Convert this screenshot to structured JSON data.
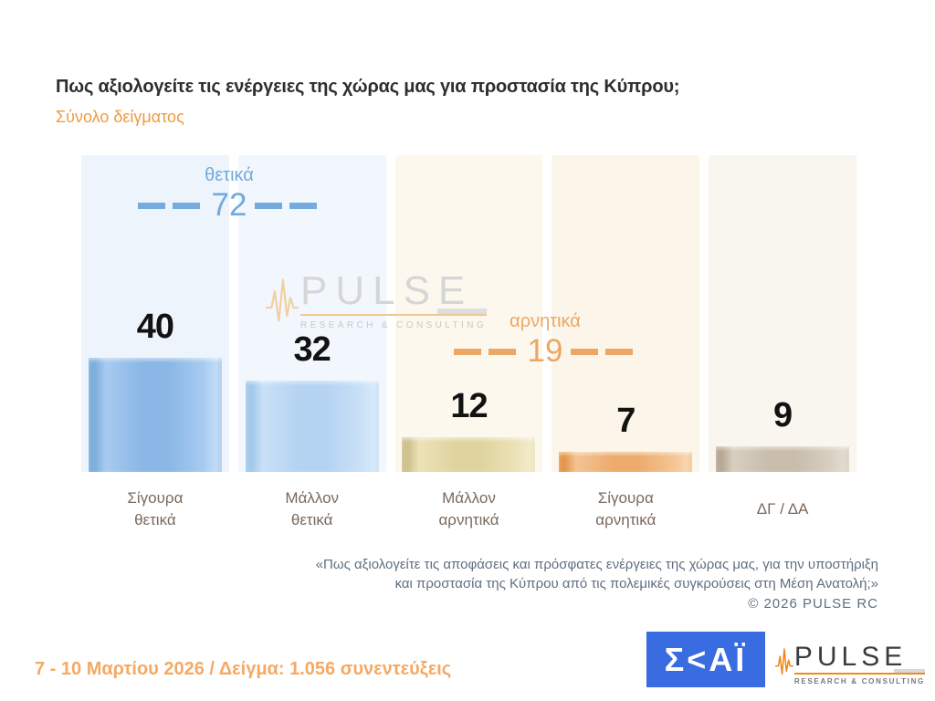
{
  "header": {
    "title": "Πως αξιολογείτε τις ενέργειες της χώρας μας για προστασία της Κύπρου;",
    "subtitle": "Σύνολο δείγματος"
  },
  "chart_data": {
    "type": "bar",
    "title": "Πως αξιολογείτε τις ενέργειες της χώρας μας για προστασία της Κύπρου;",
    "categories": [
      "Σίγουρα θετικά",
      "Μάλλον θετικά",
      "Μάλλον αρνητικά",
      "Σίγουρα αρνητικά",
      "ΔΓ / ΔΑ"
    ],
    "category_lines": [
      [
        "Σίγουρα",
        "θετικά"
      ],
      [
        "Μάλλον",
        "θετικά"
      ],
      [
        "Μάλλον",
        "αρνητικά"
      ],
      [
        "Σίγουρα",
        "αρνητικά"
      ],
      [
        "ΔΓ / ΔΑ"
      ]
    ],
    "values": [
      40,
      32,
      12,
      7,
      9
    ],
    "xlabel": "",
    "ylabel": "",
    "ylim": [
      0,
      111
    ],
    "grid": false,
    "legend_position": "none",
    "value_labels_shown": true,
    "groups": [
      {
        "label": "θετικά",
        "value": 72,
        "color": "#71aade"
      },
      {
        "label": "αρνητικά",
        "value": 19,
        "color": "#eba763"
      }
    ],
    "panel_colors": [
      "#edf4fb",
      "#f2f7fd",
      "#fdf8ee",
      "#fcf6ea",
      "#f9f5ef"
    ],
    "bar_colors": [
      {
        "dark": "#7eafdd",
        "mid": "#8ab7e6",
        "light": "#a8cbf0",
        "lighter": "#c2dcf5"
      },
      {
        "dark": "#a3c9ec",
        "mid": "#b4d3f2",
        "light": "#c9e0f7",
        "lighter": "#d8e9fa"
      },
      {
        "dark": "#cfc28e",
        "mid": "#dfd49f",
        "light": "#ece2b8",
        "lighter": "#f2ebcb"
      },
      {
        "dark": "#e2994f",
        "mid": "#edab6e",
        "light": "#f4c493",
        "lighter": "#f9d5ad"
      },
      {
        "dark": "#b7a995",
        "mid": "#c9bdac",
        "light": "#d8cfc0",
        "lighter": "#e2dbce"
      }
    ]
  },
  "watermark": {
    "brand": "PULSE",
    "tagline": "RESEARCH & CONSULTING"
  },
  "footer": {
    "quote_lines": [
      "«Πως αξιολογείτε τις αποφάσεις και πρόσφατες ενέργειες της χώρας μας, για την υποστήριξη",
      "και προστασία της Κύπρου από τις πολεμικές συγκρούσεις στη Μέση Ανατολή;»"
    ],
    "copyright": "©  2026  PULSE RC"
  },
  "meta": {
    "fieldwork": "7 - 10  Μαρτίου 2026  /  Δείγμα:  1.056 συνεντεύξεις"
  },
  "logos": {
    "skai_text": "Σ<ΑΪ",
    "skai_bg": "#3a6ce1",
    "pulse_brand": "PULSE",
    "pulse_tagline": "RESEARCH & CONSULTING",
    "pulse_accent": "#f08a1d"
  }
}
